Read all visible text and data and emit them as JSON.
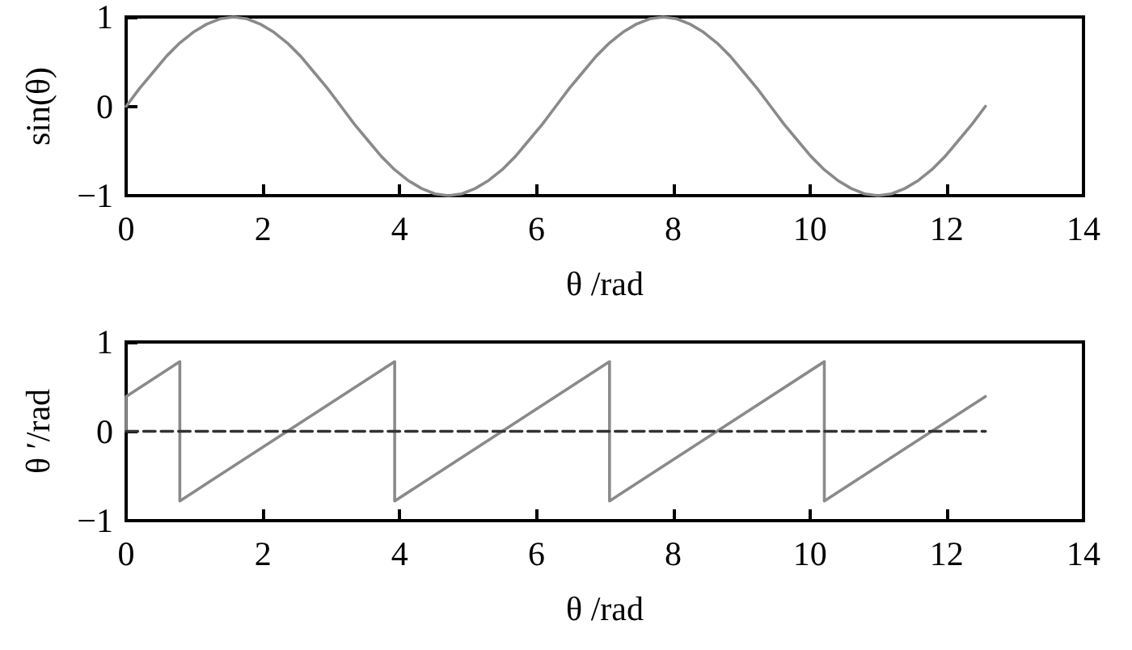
{
  "chart_data": [
    {
      "type": "line",
      "xlabel": "θ /rad",
      "ylabel": "sin(θ)",
      "xlim": [
        0,
        14
      ],
      "xticks": [
        0,
        2,
        4,
        6,
        8,
        10,
        12,
        14
      ],
      "ylim": [
        -1,
        1
      ],
      "yticks": [
        -1,
        0,
        1
      ],
      "grid": false,
      "marker": "none",
      "series": [
        {
          "color": "#8a8a8a",
          "line_style": "solid",
          "x": [
            0,
            0.196,
            0.393,
            0.589,
            0.785,
            0.982,
            1.178,
            1.374,
            1.571,
            1.767,
            1.963,
            2.16,
            2.356,
            2.553,
            2.749,
            2.945,
            3.142,
            3.338,
            3.534,
            3.731,
            3.927,
            4.123,
            4.32,
            4.516,
            4.712,
            4.909,
            5.105,
            5.301,
            5.498,
            5.694,
            5.89,
            6.087,
            6.283,
            6.48,
            6.676,
            6.872,
            7.069,
            7.265,
            7.461,
            7.658,
            7.854,
            8.05,
            8.247,
            8.443,
            8.639,
            8.836,
            9.032,
            9.228,
            9.425,
            9.621,
            9.817,
            10.014,
            10.21,
            10.407,
            10.603,
            10.799,
            10.996,
            11.192,
            11.388,
            11.585,
            11.781,
            11.977,
            12.174,
            12.37,
            12.566
          ],
          "values": [
            0,
            0.2,
            0.38,
            0.56,
            0.71,
            0.83,
            0.92,
            0.98,
            1,
            0.98,
            0.92,
            0.83,
            0.71,
            0.56,
            0.38,
            0.2,
            0,
            -0.2,
            -0.38,
            -0.56,
            -0.71,
            -0.83,
            -0.92,
            -0.98,
            -1,
            -0.98,
            -0.92,
            -0.83,
            -0.71,
            -0.56,
            -0.38,
            -0.2,
            0,
            0.2,
            0.38,
            0.56,
            0.71,
            0.83,
            0.92,
            0.98,
            1,
            0.98,
            0.92,
            0.83,
            0.71,
            0.56,
            0.38,
            0.2,
            0,
            -0.2,
            -0.38,
            -0.56,
            -0.71,
            -0.83,
            -0.92,
            -0.98,
            -1,
            -0.98,
            -0.92,
            -0.83,
            -0.71,
            -0.56,
            -0.38,
            -0.2,
            0
          ]
        }
      ]
    },
    {
      "type": "line",
      "xlabel": "θ /rad",
      "ylabel": "θ ′/rad",
      "xlim": [
        0,
        14
      ],
      "xticks": [
        0,
        2,
        4,
        6,
        8,
        10,
        12,
        14
      ],
      "ylim": [
        -1,
        1
      ],
      "yticks": [
        -1,
        0,
        1
      ],
      "grid": false,
      "marker": "none",
      "series": [
        {
          "color": "#8a8a8a",
          "line_style": "solid",
          "x": [
            0,
            0,
            0.785,
            0.785,
            3.927,
            3.927,
            7.069,
            7.069,
            10.21,
            10.21,
            12.566
          ],
          "values": [
            0,
            0.39,
            0.78,
            -0.78,
            0.78,
            -0.78,
            0.78,
            -0.78,
            0.78,
            -0.78,
            0.39
          ]
        },
        {
          "color": "#333333",
          "line_style": "dashed",
          "x": [
            0,
            12.566
          ],
          "values": [
            0,
            0
          ]
        }
      ]
    }
  ]
}
